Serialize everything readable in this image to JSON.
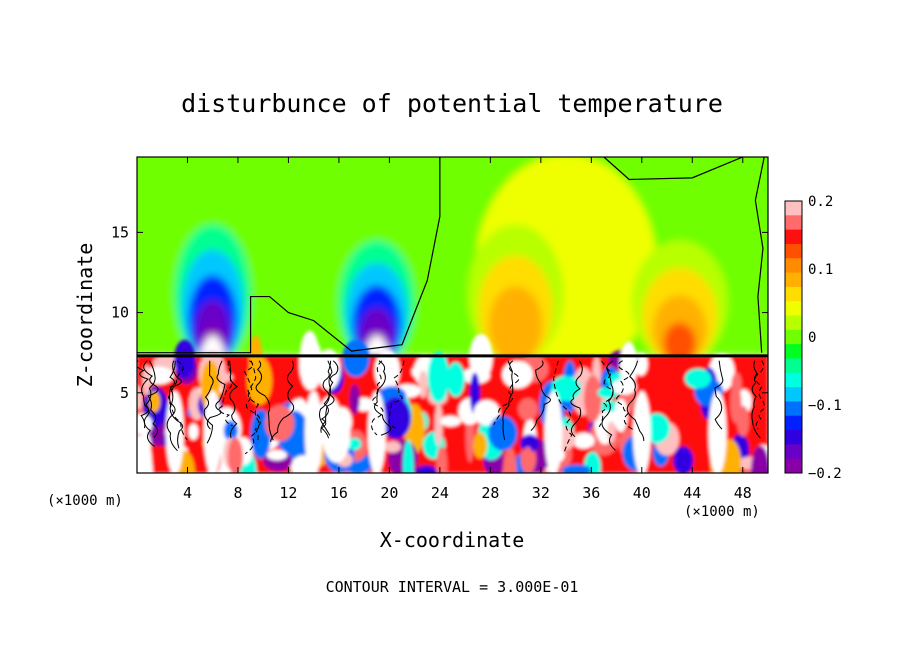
{
  "chart_data": {
    "type": "heatmap",
    "title": "disturbunce of potential temperature",
    "xlabel": "X-coordinate",
    "ylabel": "Z-coordinate",
    "x_unit": "(×1000 m)",
    "y_unit": "(×1000 m)",
    "footer": "CONTOUR INTERVAL = 3.000E-01",
    "xlim": [
      0,
      50
    ],
    "ylim": [
      0,
      19.7
    ],
    "x_ticks": [
      4,
      8,
      12,
      16,
      20,
      24,
      28,
      32,
      36,
      40,
      44,
      48
    ],
    "y_ticks": [
      5,
      10,
      15
    ],
    "colorbar": {
      "range": [
        -0.2,
        0.2
      ],
      "tick_values": [
        0.2,
        0.1,
        0,
        -0.1,
        -0.2
      ],
      "tick_labels": [
        "0.2",
        "0.1",
        "0",
        "−0.1",
        "−0.2"
      ],
      "colors": [
        "#ffc0c0",
        "#ff6a6a",
        "#ff1010",
        "#ff5000",
        "#ff8c00",
        "#ffb000",
        "#ffdd00",
        "#f0ff00",
        "#b8ff00",
        "#70ff00",
        "#00ff20",
        "#00ff90",
        "#00ffe0",
        "#00c8ff",
        "#0070ff",
        "#0020ff",
        "#3000e0",
        "#6a00c8",
        "#8a00a8"
      ]
    },
    "layer_boundary_z": 7.3,
    "upper_features": [
      {
        "x": 6,
        "z_top": 16,
        "sign": "negative",
        "peak": -0.2
      },
      {
        "x": 19,
        "z_top": 15,
        "sign": "negative",
        "peak": -0.2
      },
      {
        "x": 30,
        "z_top": 16,
        "sign": "positive",
        "peak": 0.1
      },
      {
        "x": 43,
        "z_top": 15,
        "sign": "positive",
        "peak": 0.12
      }
    ]
  }
}
